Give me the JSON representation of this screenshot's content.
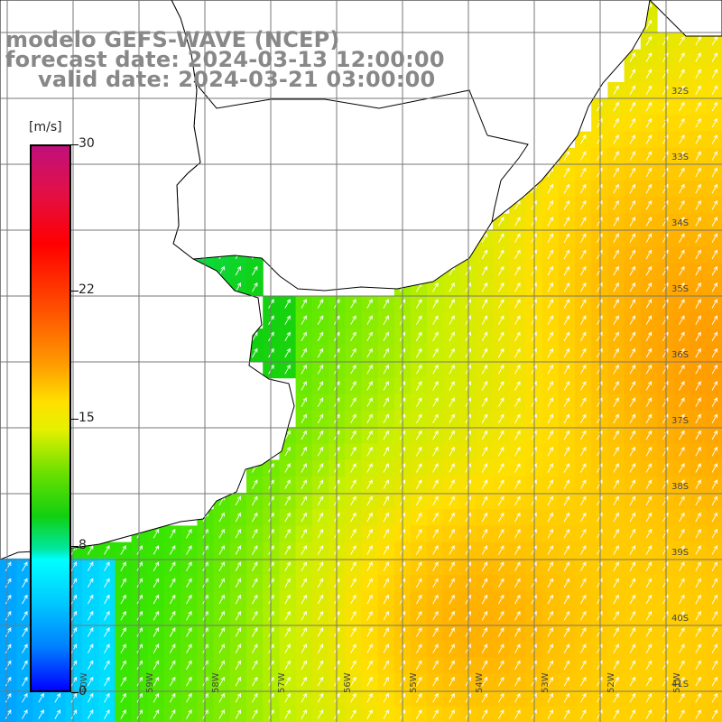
{
  "title": {
    "line1": "modelo GEFS-WAVE (NCEP)",
    "line2": "forecast date: 2024-03-13 12:00:00",
    "line3": "valid date: 2024-03-21 03:00:00"
  },
  "colorbar": {
    "unit": "[m/s]",
    "ticks": [
      "30",
      "22",
      "15",
      "8",
      "0"
    ],
    "tick_values": [
      30,
      22,
      15,
      8,
      0
    ],
    "range": [
      0,
      30
    ],
    "colors": [
      "#0000ff",
      "#0080ff",
      "#00c8ff",
      "#00ffff",
      "#00e8a0",
      "#10d010",
      "#6be000",
      "#e6f000",
      "#ffe000",
      "#ff9b00",
      "#ff5000",
      "#ff0000",
      "#e0104a",
      "#c0107c"
    ]
  },
  "map": {
    "lat_labels": [
      "32S",
      "33S",
      "34S",
      "35S",
      "36S",
      "37S",
      "38S",
      "39S",
      "40S",
      "41S"
    ],
    "lat_values": [
      -32,
      -33,
      -34,
      -35,
      -36,
      -37,
      -38,
      -39,
      -40,
      -41
    ],
    "lon_labels": [
      "60W",
      "59W",
      "58W",
      "57W",
      "56W",
      "55W",
      "54W",
      "53W",
      "52W",
      "51W"
    ],
    "lon_values": [
      -60,
      -59,
      -58,
      -57,
      -56,
      -55,
      -54,
      -53,
      -52,
      -51
    ],
    "lon_range": [
      -61,
      -50
    ],
    "lat_range": [
      -31,
      -41.5
    ],
    "land_color": "#ffffff",
    "grid_color": "#777777",
    "arrow_color": "#ffffff",
    "wind_direction": "from south-west"
  }
}
